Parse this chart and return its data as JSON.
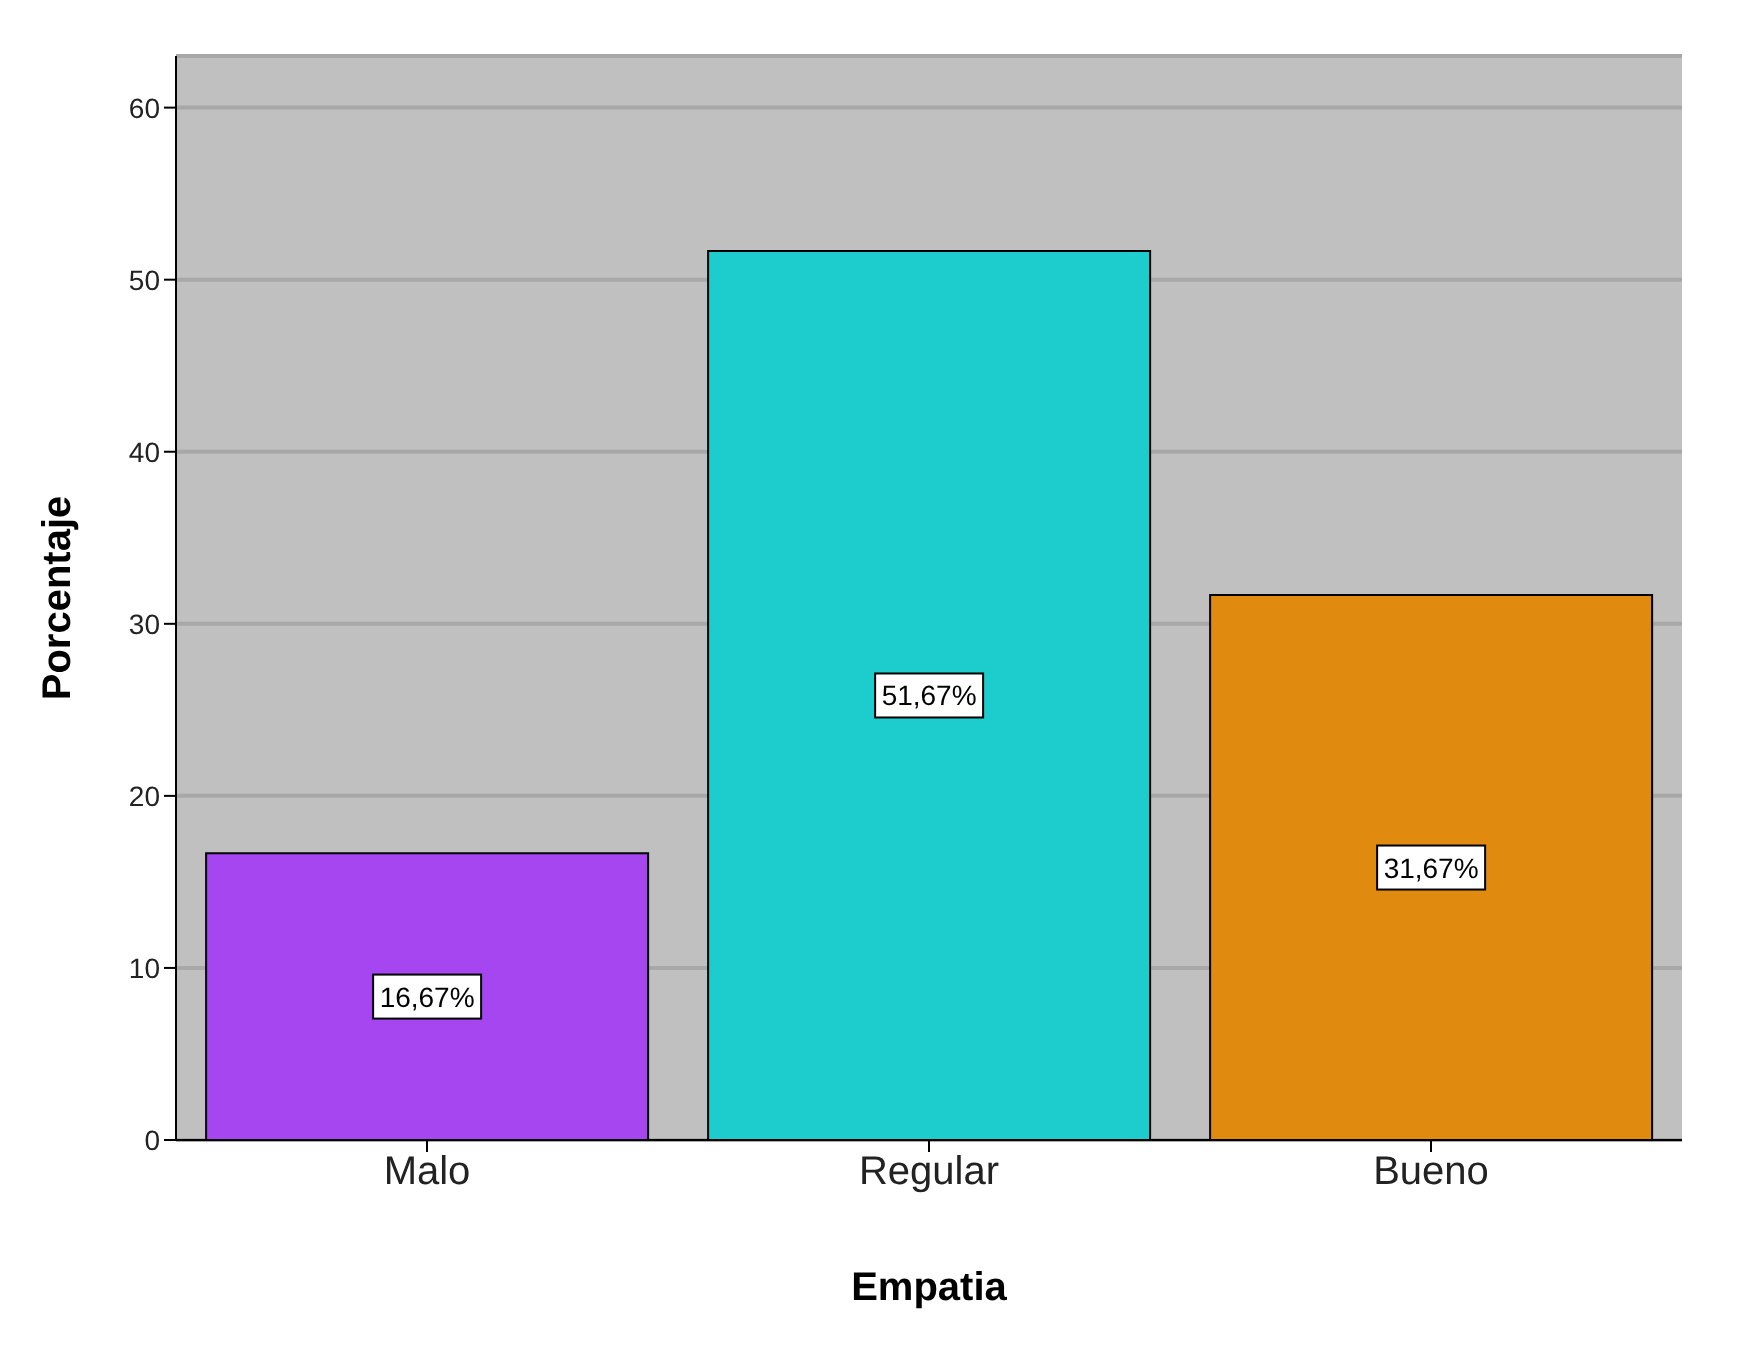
{
  "chart_data": {
    "type": "bar",
    "xlabel": "Empatia",
    "ylabel": "Porcentaje",
    "categories": [
      "Malo",
      "Regular",
      "Bueno"
    ],
    "values": [
      16.67,
      51.67,
      31.67
    ],
    "value_labels": [
      "16,67%",
      "51,67%",
      "31,67%"
    ],
    "colors": [
      "#a646f0",
      "#1dcdcd",
      "#e08a10"
    ],
    "ylim": [
      0,
      63
    ],
    "yticks": [
      0,
      10,
      20,
      30,
      40,
      50,
      60
    ],
    "grid": "y",
    "legend": false
  }
}
